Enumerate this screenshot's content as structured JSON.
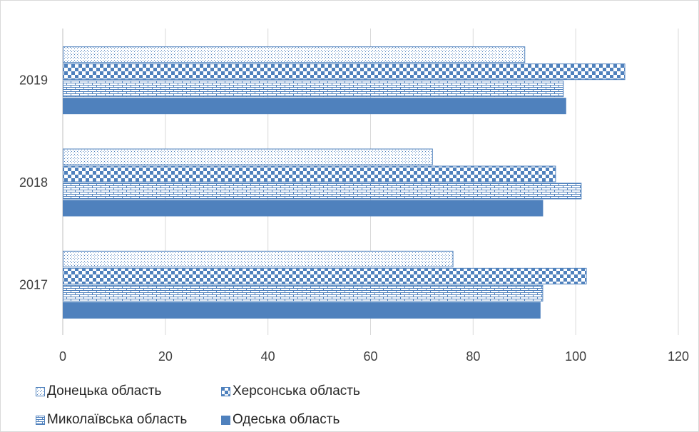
{
  "chart_data": {
    "type": "bar",
    "orientation": "horizontal",
    "categories": [
      "2019",
      "2018",
      "2017"
    ],
    "series": [
      {
        "name": "Донецька область",
        "values": [
          90,
          72,
          76
        ],
        "pattern": "dots"
      },
      {
        "name": "Херсонська область",
        "values": [
          109.5,
          96,
          102
        ],
        "pattern": "checker"
      },
      {
        "name": "Миколаївська область",
        "values": [
          97.5,
          101,
          93.5
        ],
        "pattern": "bricks"
      },
      {
        "name": "Одеська область",
        "values": [
          98,
          93.5,
          93
        ],
        "pattern": "solid"
      }
    ],
    "xlim": [
      0,
      120
    ],
    "xticks": [
      "0",
      "20",
      "40",
      "60",
      "80",
      "100",
      "120"
    ],
    "grid": true,
    "legend_position": "bottom-left",
    "colors": {
      "bar": "#4f81bd",
      "grid": "#d9d9d9",
      "axis": "#bfbfbf",
      "text": "#404040"
    }
  }
}
